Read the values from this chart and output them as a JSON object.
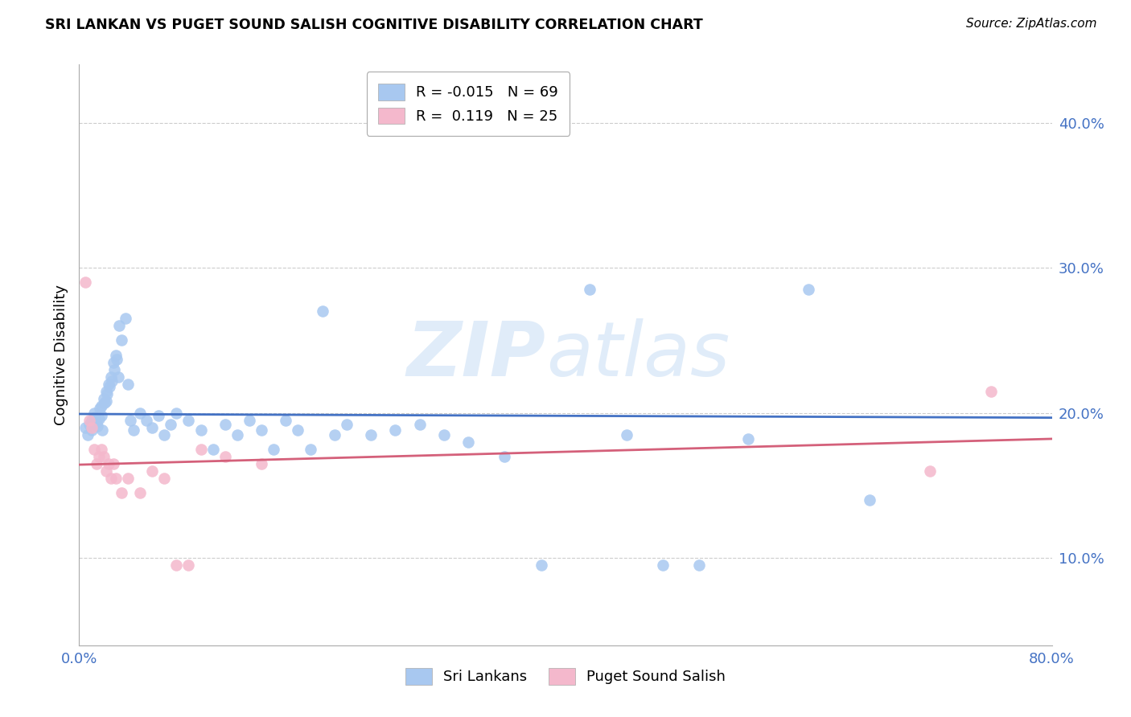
{
  "title": "SRI LANKAN VS PUGET SOUND SALISH COGNITIVE DISABILITY CORRELATION CHART",
  "source": "Source: ZipAtlas.com",
  "ylabel": "Cognitive Disability",
  "xlim": [
    0.0,
    0.8
  ],
  "ylim": [
    0.04,
    0.44
  ],
  "xlabel_vals": [
    0.0,
    0.8
  ],
  "xlabel_labels": [
    "0.0%",
    "80.0%"
  ],
  "ylabel_vals": [
    0.1,
    0.2,
    0.3,
    0.4
  ],
  "ylabel_labels": [
    "10.0%",
    "20.0%",
    "30.0%",
    "40.0%"
  ],
  "watermark_zip": "ZIP",
  "watermark_atlas": "atlas",
  "sri_lankan_color": "#a8c8f0",
  "puget_color": "#f4b8cc",
  "trend_sri_color": "#4472c4",
  "trend_puget_color": "#d4607a",
  "sri_lankan_R": -0.015,
  "puget_R": 0.119,
  "sri_x": [
    0.005,
    0.007,
    0.008,
    0.01,
    0.01,
    0.012,
    0.013,
    0.014,
    0.015,
    0.016,
    0.017,
    0.018,
    0.018,
    0.019,
    0.02,
    0.021,
    0.022,
    0.022,
    0.023,
    0.024,
    0.025,
    0.026,
    0.027,
    0.028,
    0.029,
    0.03,
    0.031,
    0.032,
    0.033,
    0.035,
    0.038,
    0.04,
    0.042,
    0.045,
    0.05,
    0.055,
    0.06,
    0.065,
    0.07,
    0.075,
    0.08,
    0.09,
    0.1,
    0.11,
    0.12,
    0.13,
    0.14,
    0.15,
    0.16,
    0.17,
    0.18,
    0.19,
    0.2,
    0.21,
    0.22,
    0.24,
    0.26,
    0.28,
    0.3,
    0.32,
    0.35,
    0.38,
    0.42,
    0.45,
    0.48,
    0.51,
    0.55,
    0.6,
    0.65
  ],
  "sri_y": [
    0.19,
    0.185,
    0.192,
    0.195,
    0.188,
    0.2,
    0.197,
    0.193,
    0.191,
    0.196,
    0.203,
    0.198,
    0.205,
    0.188,
    0.21,
    0.207,
    0.215,
    0.208,
    0.213,
    0.22,
    0.218,
    0.225,
    0.222,
    0.235,
    0.23,
    0.24,
    0.237,
    0.225,
    0.26,
    0.25,
    0.265,
    0.22,
    0.195,
    0.188,
    0.2,
    0.195,
    0.19,
    0.198,
    0.185,
    0.192,
    0.2,
    0.195,
    0.188,
    0.175,
    0.192,
    0.185,
    0.195,
    0.188,
    0.175,
    0.195,
    0.188,
    0.175,
    0.27,
    0.185,
    0.192,
    0.185,
    0.188,
    0.192,
    0.185,
    0.18,
    0.17,
    0.095,
    0.285,
    0.185,
    0.095,
    0.095,
    0.182,
    0.285,
    0.14
  ],
  "puget_x": [
    0.005,
    0.008,
    0.01,
    0.012,
    0.014,
    0.016,
    0.018,
    0.02,
    0.022,
    0.024,
    0.026,
    0.028,
    0.03,
    0.035,
    0.04,
    0.05,
    0.06,
    0.07,
    0.08,
    0.09,
    0.1,
    0.12,
    0.15,
    0.7,
    0.75
  ],
  "puget_y": [
    0.29,
    0.195,
    0.19,
    0.175,
    0.165,
    0.17,
    0.175,
    0.17,
    0.16,
    0.165,
    0.155,
    0.165,
    0.155,
    0.145,
    0.155,
    0.145,
    0.16,
    0.155,
    0.095,
    0.095,
    0.175,
    0.17,
    0.165,
    0.16,
    0.215
  ]
}
